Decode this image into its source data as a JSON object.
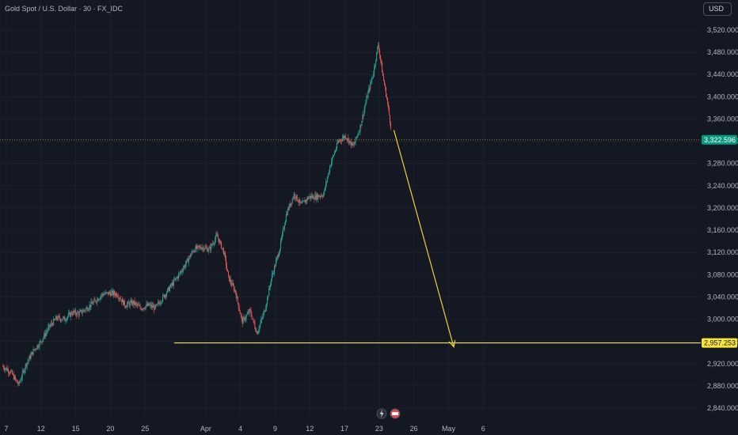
{
  "legend": {
    "text": "Gold Spot / U.S. Dollar · 30 · FX_IDC"
  },
  "currency": "USD",
  "chart_data": {
    "type": "candlestick",
    "title": "Gold Spot / U.S. Dollar · 30 · FX_IDC",
    "ylim": [
      2820,
      3560
    ],
    "y_ticks": [
      2840,
      2880,
      2920,
      2960,
      3000,
      3040,
      3080,
      3120,
      3160,
      3200,
      3240,
      3280,
      3320,
      3360,
      3400,
      3440,
      3480,
      3520
    ],
    "y_tick_labels": [
      "2,840.000",
      "2,880.000",
      "2,920.000",
      "2,960.000",
      "3,000.000",
      "3,040.000",
      "3,080.000",
      "3,120.000",
      "3,160.000",
      "3,200.000",
      "3,240.000",
      "3,280.000",
      "3,320.000",
      "3,360.000",
      "3,400.000",
      "3,440.000",
      "3,480.000",
      "3,520.000"
    ],
    "x_labels": [
      {
        "label": "7",
        "day": 7
      },
      {
        "label": "12",
        "day": 11
      },
      {
        "label": "15",
        "day": 15
      },
      {
        "label": "20",
        "day": 19
      },
      {
        "label": "25",
        "day": 23
      },
      {
        "label": "Apr",
        "day": 30
      },
      {
        "label": "4",
        "day": 34
      },
      {
        "label": "9",
        "day": 38
      },
      {
        "label": "12",
        "day": 42
      },
      {
        "label": "17",
        "day": 46
      },
      {
        "label": "23",
        "day": 50
      },
      {
        "label": "26",
        "day": 54
      },
      {
        "label": "May",
        "day": 58
      },
      {
        "label": "6",
        "day": 62
      }
    ],
    "price_path": [
      [
        6.6,
        2915
      ],
      [
        7.5,
        2905
      ],
      [
        8.4,
        2882
      ],
      [
        9.3,
        2920
      ],
      [
        10.2,
        2945
      ],
      [
        11.0,
        2960
      ],
      [
        11.9,
        2985
      ],
      [
        12.8,
        3002
      ],
      [
        13.7,
        3000
      ],
      [
        14.6,
        3012
      ],
      [
        15.4,
        3010
      ],
      [
        16.3,
        3020
      ],
      [
        17.2,
        3032
      ],
      [
        18.1,
        3045
      ],
      [
        19.0,
        3047
      ],
      [
        19.8,
        3045
      ],
      [
        20.7,
        3025
      ],
      [
        21.6,
        3030
      ],
      [
        22.5,
        3020
      ],
      [
        23.4,
        3025
      ],
      [
        24.2,
        3020
      ],
      [
        25.1,
        3040
      ],
      [
        26.0,
        3060
      ],
      [
        26.9,
        3080
      ],
      [
        27.7,
        3100
      ],
      [
        28.6,
        3125
      ],
      [
        29.5,
        3130
      ],
      [
        30.4,
        3125
      ],
      [
        31.3,
        3150
      ],
      [
        32.1,
        3120
      ],
      [
        32.6,
        3075
      ],
      [
        33.4,
        3050
      ],
      [
        34.2,
        2995
      ],
      [
        35.1,
        3015
      ],
      [
        35.9,
        2975
      ],
      [
        36.8,
        3015
      ],
      [
        37.6,
        3075
      ],
      [
        38.5,
        3125
      ],
      [
        39.3,
        3190
      ],
      [
        40.2,
        3225
      ],
      [
        41.0,
        3205
      ],
      [
        41.9,
        3220
      ],
      [
        42.7,
        3220
      ],
      [
        43.6,
        3225
      ],
      [
        44.4,
        3280
      ],
      [
        45.3,
        3320
      ],
      [
        46.1,
        3330
      ],
      [
        47.0,
        3310
      ],
      [
        47.8,
        3345
      ],
      [
        48.6,
        3400
      ],
      [
        49.3,
        3440
      ],
      [
        49.9,
        3495
      ],
      [
        50.4,
        3440
      ],
      [
        50.9,
        3395
      ],
      [
        51.4,
        3340
      ]
    ],
    "series": [
      {
        "name": "Gold Spot / U.S. Dollar"
      }
    ],
    "last_price": 3322.596,
    "last_price_label": "3,322.596",
    "support_level": 2957.253,
    "support_label": "2,957.253",
    "support_start_day": 30,
    "projection_arrow": {
      "from": [
        51.7,
        3340
      ],
      "to": [
        58.6,
        2950
      ]
    },
    "colors": {
      "up": "#26a69a",
      "down": "#ef5350",
      "support": "#f7e33e",
      "arrow": "#f2cc3c",
      "last_price": "#089981"
    }
  }
}
